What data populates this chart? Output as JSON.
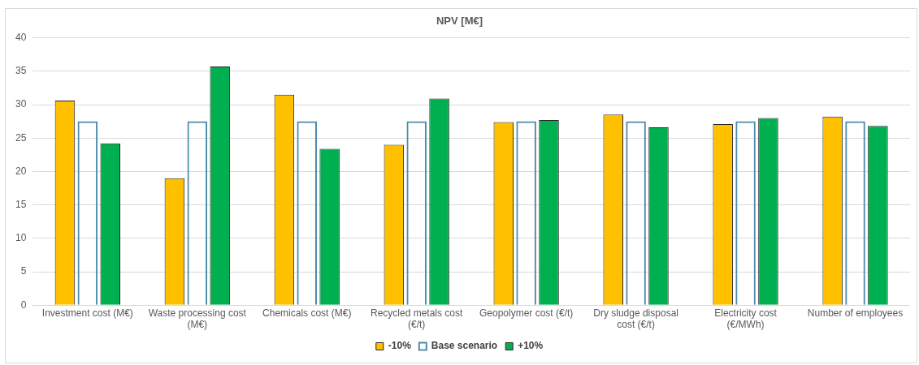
{
  "chart_data": {
    "type": "bar",
    "title": "NPV [M€]",
    "categories": [
      "Investment cost (M€)",
      "Waste processing cost (M€)",
      "Chemicals cost (M€)",
      "Recycled metals cost (€/t)",
      "Geopolymer cost (€/t)",
      "Dry sludge disposal cost (€/t)",
      "Electricity cost (€/MWh)",
      "Number of employees"
    ],
    "series": [
      {
        "name": "-10%",
        "color": "#ffc000",
        "values": [
          30.6,
          19.0,
          31.5,
          24.0,
          27.4,
          28.5,
          27.1,
          28.2
        ]
      },
      {
        "name": "Base scenario",
        "color": "#4f8cae",
        "values": [
          27.5,
          27.5,
          27.5,
          27.5,
          27.5,
          27.5,
          27.5,
          27.5
        ]
      },
      {
        "name": "+10%",
        "color": "#00b050",
        "values": [
          24.2,
          35.7,
          23.4,
          30.9,
          27.7,
          26.6,
          28.0,
          26.8
        ]
      }
    ],
    "ylim": [
      0,
      40
    ],
    "yticks": [
      0,
      5,
      10,
      15,
      20,
      25,
      30,
      35,
      40
    ],
    "grid": "y",
    "legend": "bottom"
  }
}
